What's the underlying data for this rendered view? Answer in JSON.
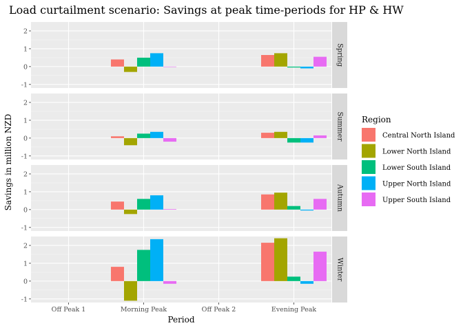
{
  "chart_data": {
    "type": "bar",
    "title": "Load curtailment scenario: Savings at peak time-periods for HP & HW",
    "xlabel": "Period",
    "ylabel": "Savings in million NZD",
    "categories": [
      "Off Peak 1",
      "Morning Peak",
      "Off Peak 2",
      "Evening Peak"
    ],
    "ylim": [
      -1.2,
      2.5
    ],
    "yticks": [
      -1,
      0,
      1,
      2
    ],
    "grid": true,
    "legend_title": "Region",
    "legend_position": "right",
    "series": [
      {
        "name": "Central North Island",
        "color": "#F8766D"
      },
      {
        "name": "Lower North Island",
        "color": "#A3A500"
      },
      {
        "name": "Lower South Island",
        "color": "#00BF7D"
      },
      {
        "name": "Upper North Island",
        "color": "#00B0F6"
      },
      {
        "name": "Upper South Island",
        "color": "#E76BF3"
      }
    ],
    "facets": [
      {
        "name": "Spring",
        "values": {
          "Morning Peak": [
            0.4,
            -0.3,
            0.5,
            0.75,
            0.0
          ],
          "Evening Peak": [
            0.65,
            0.75,
            -0.05,
            -0.1,
            0.55
          ]
        }
      },
      {
        "name": "Summer",
        "values": {
          "Morning Peak": [
            0.1,
            -0.4,
            0.25,
            0.35,
            -0.2
          ],
          "Evening Peak": [
            0.3,
            0.35,
            -0.25,
            -0.25,
            0.15
          ]
        }
      },
      {
        "name": "Autumn",
        "values": {
          "Morning Peak": [
            0.45,
            -0.25,
            0.6,
            0.8,
            0.03
          ],
          "Evening Peak": [
            0.85,
            0.95,
            0.2,
            -0.05,
            0.6
          ]
        }
      },
      {
        "name": "Winter",
        "values": {
          "Morning Peak": [
            0.8,
            -1.1,
            1.75,
            2.35,
            -0.15
          ],
          "Evening Peak": [
            2.15,
            2.4,
            0.25,
            -0.15,
            1.65
          ]
        }
      }
    ]
  }
}
